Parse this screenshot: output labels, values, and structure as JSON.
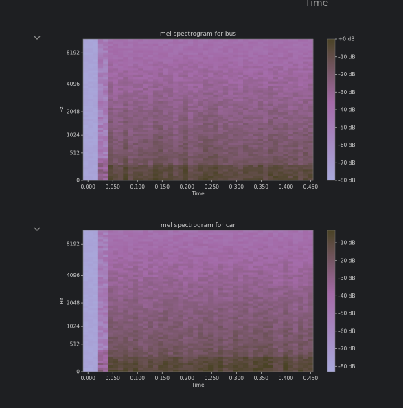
{
  "header": {
    "title": "Time"
  },
  "icons": {
    "collapse": "chevron-down-icon"
  },
  "colors": {
    "background": "#1e1f22",
    "axis_text": "#c8c8c8",
    "cmap_low": "#a9a9dc",
    "cmap_mid": "#a46aa8",
    "cmap_high": "#4a4325"
  },
  "charts": [
    {
      "id": "bus",
      "chart_data": {
        "type": "heatmap",
        "title": "mel spectrogram for bus",
        "xlabel": "Time",
        "ylabel": "Hz",
        "x_ticks": [
          "0.000",
          "0.050",
          "0.100",
          "0.150",
          "0.200",
          "0.250",
          "0.300",
          "0.350",
          "0.400",
          "0.450"
        ],
        "y_ticks": [
          "0",
          "512",
          "1024",
          "2048",
          "4096",
          "8192"
        ],
        "colorbar_ticks": [
          "+0 dB",
          "-10 dB",
          "-20 dB",
          "-30 dB",
          "-40 dB",
          "-50 dB",
          "-60 dB",
          "-70 dB",
          "-80 dB"
        ],
        "xlim": [
          -0.01,
          0.455
        ],
        "clim_db": [
          -80,
          0
        ],
        "yscale": "mel"
      }
    },
    {
      "id": "car",
      "chart_data": {
        "type": "heatmap",
        "title": "mel spectrogram for car",
        "xlabel": "Time",
        "ylabel": "Hz",
        "x_ticks": [
          "0.000",
          "0.050",
          "0.100",
          "0.150",
          "0.200",
          "0.250",
          "0.300",
          "0.350",
          "0.400",
          "0.450"
        ],
        "y_ticks": [
          "0",
          "512",
          "1024",
          "2048",
          "4096",
          "8192"
        ],
        "colorbar_ticks": [
          "-10 dB",
          "-20 dB",
          "-30 dB",
          "-40 dB",
          "-50 dB",
          "-60 dB",
          "-70 dB",
          "-80 dB"
        ],
        "xlim": [
          -0.01,
          0.455
        ],
        "clim_db": [
          -83,
          -3
        ],
        "yscale": "mel"
      }
    }
  ]
}
